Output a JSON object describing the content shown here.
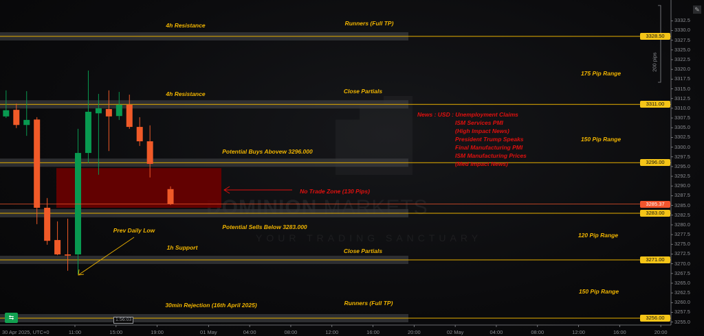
{
  "chart": {
    "timezone_label": "30 Apr 2025, UTC+0",
    "countdown": "1:56:03",
    "pips_bracket_label": "200 pips",
    "price_axis_ticks": [
      "3332.5",
      "3330.0",
      "3327.5",
      "3325.0",
      "3322.5",
      "3320.0",
      "3317.5",
      "3315.0",
      "3312.5",
      "3310.0",
      "3307.5",
      "3305.0",
      "3302.5",
      "3300.0",
      "3297.5",
      "3295.0",
      "3292.5",
      "3290.0",
      "3287.5",
      "3285.0",
      "3282.5",
      "3280.0",
      "3277.5",
      "3275.0",
      "3272.5",
      "3270.0",
      "3267.5",
      "3265.0",
      "3262.5",
      "3260.0",
      "3257.5",
      "3255.0"
    ],
    "time_axis_ticks": [
      {
        "label": "11:00",
        "hour": 11
      },
      {
        "label": "15:00",
        "hour": 15
      },
      {
        "label": "19:00",
        "hour": 19
      },
      {
        "label": "01 May",
        "hour": 24
      },
      {
        "label": "04:00",
        "hour": 28
      },
      {
        "label": "08:00",
        "hour": 32
      },
      {
        "label": "12:00",
        "hour": 36
      },
      {
        "label": "16:00",
        "hour": 40
      },
      {
        "label": "20:00",
        "hour": 44
      },
      {
        "label": "02 May",
        "hour": 48
      },
      {
        "label": "04:00",
        "hour": 52
      },
      {
        "label": "08:00",
        "hour": 56
      },
      {
        "label": "12:00",
        "hour": 60
      },
      {
        "label": "16:00",
        "hour": 64
      },
      {
        "label": "20:00",
        "hour": 68
      }
    ],
    "current_price": {
      "value": "3285.37",
      "color": "#f2542d"
    },
    "levels": [
      {
        "value": 3328.5,
        "label": "3328.50"
      },
      {
        "value": 3311.0,
        "label": "3311.00"
      },
      {
        "value": 3296.0,
        "label": "3296.00"
      },
      {
        "value": 3283.0,
        "label": "3283.00"
      },
      {
        "value": 3271.0,
        "label": "3271.00"
      },
      {
        "value": 3256.0,
        "label": "3256.00"
      }
    ],
    "no_trade_zone": {
      "top": 3294.6,
      "bottom": 3284.4,
      "color": "#6b0000"
    },
    "candles": [
      {
        "hour": 4,
        "o": 3307.9,
        "h": 3314.6,
        "l": 3307.5,
        "c": 3309.5
      },
      {
        "hour": 5,
        "o": 3309.6,
        "h": 3311.2,
        "l": 3304.9,
        "c": 3305.7
      },
      {
        "hour": 6,
        "o": 3305.7,
        "h": 3314.4,
        "l": 3302.9,
        "c": 3307.0
      },
      {
        "hour": 7,
        "o": 3307.1,
        "h": 3307.7,
        "l": 3280.2,
        "c": 3284.4
      },
      {
        "hour": 8,
        "o": 3284.4,
        "h": 3286.9,
        "l": 3274.9,
        "c": 3275.9
      },
      {
        "hour": 9,
        "o": 3276.1,
        "h": 3280.9,
        "l": 3272.2,
        "c": 3272.4
      },
      {
        "hour": 10,
        "o": 3272.4,
        "h": 3281.6,
        "l": 3268.2,
        "c": 3272.1
      },
      {
        "hour": 11,
        "o": 3272.4,
        "h": 3304.7,
        "l": 3267.3,
        "c": 3298.5
      },
      {
        "hour": 12,
        "o": 3298.5,
        "h": 3319.7,
        "l": 3295.9,
        "c": 3309.1
      },
      {
        "hour": 13,
        "o": 3308.7,
        "h": 3313.7,
        "l": 3292.9,
        "c": 3310.0
      },
      {
        "hour": 14,
        "o": 3309.8,
        "h": 3314.6,
        "l": 3299.0,
        "c": 3307.9
      },
      {
        "hour": 15,
        "o": 3308.0,
        "h": 3314.2,
        "l": 3307.0,
        "c": 3310.9
      },
      {
        "hour": 16,
        "o": 3310.9,
        "h": 3313.5,
        "l": 3304.7,
        "c": 3305.2
      },
      {
        "hour": 17,
        "o": 3305.2,
        "h": 3307.7,
        "l": 3300.3,
        "c": 3301.5
      },
      {
        "hour": 18,
        "o": 3301.5,
        "h": 3305.6,
        "l": 3292.2,
        "c": 3295.7
      },
      {
        "hour": 20,
        "o": 3289.2,
        "h": 3289.9,
        "l": 3285.1,
        "c": 3285.37
      }
    ],
    "colors": {
      "up": "#089950",
      "down": "#f05a28",
      "level": "#e8b000",
      "band": "#3a3b3d",
      "axis": "#8b8d92"
    }
  },
  "annotations": {
    "r1_left": "4h Resistance",
    "r1_right": "Runners (Full TP)",
    "r2_left": "4h Resistance",
    "r2_right": "Close Partials",
    "buys": "Potential Buys Abovew 3296.000",
    "no_trade": "No Trade Zone (130 Pips)",
    "sells": "Potential Sells Below 3283.000",
    "prev_low": "Prev Daily Low",
    "s1_left": "1h Support",
    "s1_right": "Close Partials",
    "s2_left": "30min Rejection (16th April 2025)",
    "s2_right": "Runners (Full TP)",
    "range1": "175 Pip Range",
    "range2": "150 Pip Range",
    "range3": "120 Pip Range",
    "range4": "150 Pip Range",
    "news": [
      "News : USD : Unemployment Claims",
      "ISM Services PMI",
      "(High Impact News)",
      "President Trump Speaks",
      "Final Manufacturing PMI",
      "ISM Manufacturing Prices",
      "(Med Impact News)"
    ]
  },
  "watermark": {
    "brand_bold": "DOMINION",
    "brand_light": "MARKETS",
    "tagline": "YOUR TRADING SANCTUARY"
  },
  "toolbar": {
    "goto_icon": "calendar-goto-icon",
    "edit_icon": "edit-icon"
  }
}
